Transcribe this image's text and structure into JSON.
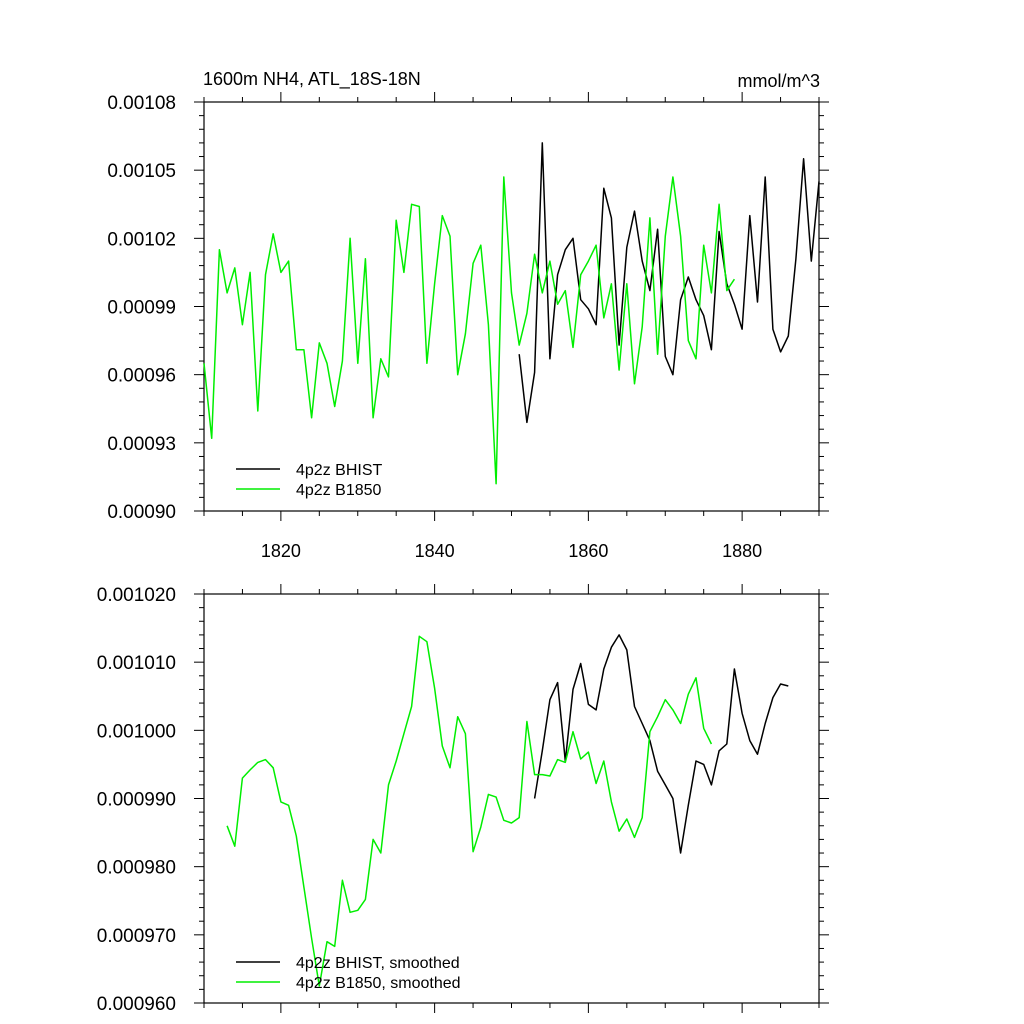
{
  "colors": {
    "bhist": "#000000",
    "b1850": "#00ee00",
    "axis": "#000000",
    "background": "#ffffff"
  },
  "chart_data": [
    {
      "type": "line",
      "title": "1600m NH4, ATL_18S-18N",
      "units": "mmol/m^3",
      "xlim": [
        1810,
        1890
      ],
      "ylim": [
        0.0009,
        0.00108
      ],
      "x_ticks": [
        1820,
        1840,
        1860,
        1880
      ],
      "x_tick_labels": [
        "1820",
        "1840",
        "1860",
        "1880"
      ],
      "y_ticks": [
        0.0009,
        0.00093,
        0.00096,
        0.00099,
        0.00102,
        0.00105,
        0.00108
      ],
      "y_tick_labels": [
        "0.00090",
        "0.00093",
        "0.00096",
        "0.00099",
        "0.00102",
        "0.00105",
        "0.00108"
      ],
      "grid": false,
      "legend_position": "bottom-left",
      "series": [
        {
          "name": "4p2z BHIST",
          "color": "#000000",
          "x_start": 1851,
          "values": [
            0.000969,
            0.000939,
            0.000961,
            0.001062,
            0.000967,
            0.001004,
            0.001015,
            0.00102,
            0.000993,
            0.000989,
            0.000982,
            0.001042,
            0.001029,
            0.000973,
            0.001016,
            0.001032,
            0.00101,
            0.000997,
            0.001024,
            0.000968,
            0.00096,
            0.000993,
            0.001003,
            0.000993,
            0.000986,
            0.000971,
            0.001023,
            0.001,
            0.000991,
            0.00098,
            0.00103,
            0.000992,
            0.001047,
            0.00098,
            0.00097,
            0.000977,
            0.001011,
            0.001055,
            0.00101,
            0.001045
          ]
        },
        {
          "name": "4p2z B1850",
          "color": "#00ee00",
          "x_start": 1810,
          "values": [
            0.000965,
            0.000932,
            0.001015,
            0.000996,
            0.001007,
            0.000982,
            0.001005,
            0.000944,
            0.001004,
            0.001022,
            0.001005,
            0.00101,
            0.000971,
            0.000971,
            0.000941,
            0.000974,
            0.000965,
            0.000946,
            0.000966,
            0.00102,
            0.000965,
            0.001011,
            0.000941,
            0.000967,
            0.000959,
            0.001028,
            0.001005,
            0.001035,
            0.001034,
            0.000965,
            0.001,
            0.00103,
            0.001021,
            0.00096,
            0.000978,
            0.001009,
            0.001017,
            0.000982,
            0.000912,
            0.001047,
            0.000996,
            0.000973,
            0.000987,
            0.001013,
            0.000996,
            0.00101,
            0.000991,
            0.000997,
            0.000972,
            0.001004,
            0.00101,
            0.001017,
            0.000985,
            0.001,
            0.000962,
            0.001,
            0.000956,
            0.000981,
            0.001029,
            0.000969,
            0.001021,
            0.001047,
            0.001021,
            0.000975,
            0.000967,
            0.001017,
            0.000996,
            0.001035,
            0.000997,
            0.001002
          ]
        }
      ]
    },
    {
      "type": "line",
      "xlim": [
        1810,
        1890
      ],
      "ylim": [
        0.00096,
        0.00102
      ],
      "x_ticks": [
        1820,
        1840,
        1860,
        1880
      ],
      "y_ticks": [
        0.00096,
        0.00097,
        0.00098,
        0.00099,
        0.001,
        0.00101,
        0.00102
      ],
      "y_tick_labels": [
        "0.000960",
        "0.000970",
        "0.000980",
        "0.000990",
        "0.001000",
        "0.001010",
        "0.001020"
      ],
      "grid": false,
      "legend_position": "bottom-left",
      "series": [
        {
          "name": "4p2z BHIST, smoothed",
          "color": "#000000",
          "x_start": 1853,
          "values": [
            0.00099,
            0.000997,
            0.0010045,
            0.001007,
            0.0009955,
            0.001006,
            0.0010098,
            0.0010038,
            0.001003,
            0.001009,
            0.0010122,
            0.001014,
            0.0010118,
            0.0010035,
            0.001001,
            0.0009985,
            0.000994,
            0.000992,
            0.00099,
            0.000982,
            0.000989,
            0.0009955,
            0.000995,
            0.000992,
            0.000997,
            0.000998,
            0.001009,
            0.0010025,
            0.0009985,
            0.0009965,
            0.001001,
            0.0010048,
            0.0010068,
            0.0010065
          ]
        },
        {
          "name": "4p2z B1850, smoothed",
          "color": "#00ee00",
          "x_start": 1813,
          "values": [
            0.000986,
            0.000983,
            0.000993,
            0.0009942,
            0.0009953,
            0.0009957,
            0.0009945,
            0.0009895,
            0.000989,
            0.0009845,
            0.000977,
            0.0009695,
            0.0009625,
            0.000969,
            0.0009683,
            0.000978,
            0.0009733,
            0.0009736,
            0.0009752,
            0.000984,
            0.000982,
            0.000992,
            0.0009955,
            0.0009995,
            0.0010035,
            0.0010138,
            0.001013,
            0.0010062,
            0.0009977,
            0.0009945,
            0.001002,
            0.0009995,
            0.0009822,
            0.0009858,
            0.0009906,
            0.0009902,
            0.0009868,
            0.0009864,
            0.0009872,
            0.0010013,
            0.0009935,
            0.0009935,
            0.0009933,
            0.0009957,
            0.0009953,
            0.0009998,
            0.0009958,
            0.0009968,
            0.0009922,
            0.0009955,
            0.0009895,
            0.0009852,
            0.000987,
            0.0009843,
            0.0009872,
            0.0009998,
            0.001002,
            0.0010045,
            0.001003,
            0.001001,
            0.0010053,
            0.0010077,
            0.0010003,
            0.000998
          ]
        }
      ]
    }
  ]
}
